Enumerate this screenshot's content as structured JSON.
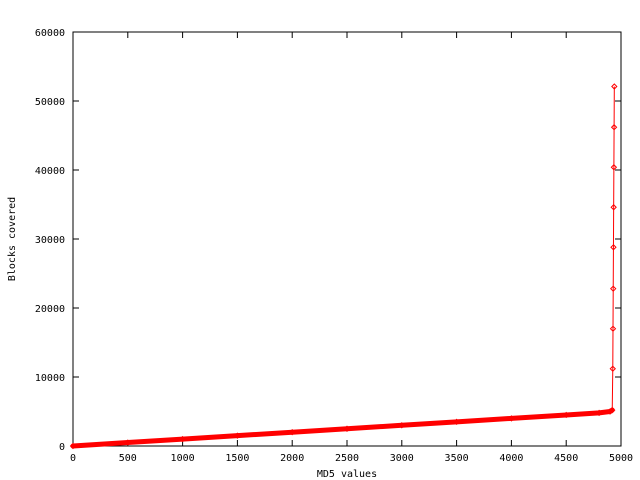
{
  "chart_data": {
    "type": "line",
    "title": "",
    "xlabel": "MD5 values",
    "ylabel": "Blocks covered",
    "xlim": [
      0,
      5000
    ],
    "ylim": [
      0,
      60000
    ],
    "xticks": [
      "0",
      "500",
      "1000",
      "1500",
      "2000",
      "2500",
      "3000",
      "3500",
      "4000",
      "4500",
      "5000"
    ],
    "yticks": [
      "0",
      "10000",
      "20000",
      "30000",
      "40000",
      "50000",
      "60000"
    ],
    "grid": false,
    "legend": "none",
    "series": [
      {
        "color": "#ff0000",
        "points": [
          [
            0,
            0
          ],
          [
            500,
            500
          ],
          [
            1000,
            1000
          ],
          [
            1500,
            1500
          ],
          [
            2000,
            2000
          ],
          [
            2500,
            2500
          ],
          [
            3000,
            3000
          ],
          [
            3500,
            3500
          ],
          [
            4000,
            4000
          ],
          [
            4500,
            4500
          ],
          [
            4800,
            4800
          ],
          [
            4900,
            5000
          ],
          [
            4920,
            5200
          ],
          [
            4925,
            11200
          ],
          [
            4927,
            17000
          ],
          [
            4929,
            22800
          ],
          [
            4931,
            28800
          ],
          [
            4933,
            34600
          ],
          [
            4935,
            40400
          ],
          [
            4937,
            46200
          ],
          [
            4939,
            52100
          ]
        ]
      }
    ]
  }
}
